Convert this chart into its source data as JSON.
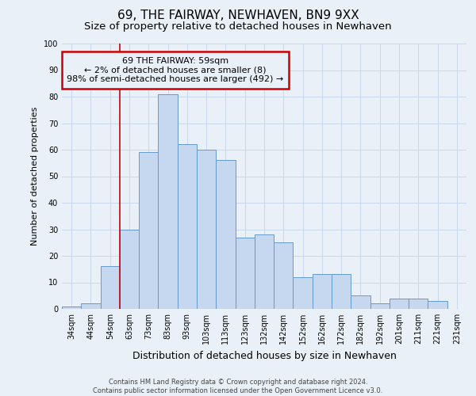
{
  "title": "69, THE FAIRWAY, NEWHAVEN, BN9 9XX",
  "subtitle": "Size of property relative to detached houses in Newhaven",
  "xlabel": "Distribution of detached houses by size in Newhaven",
  "ylabel": "Number of detached properties",
  "bar_labels": [
    "34sqm",
    "44sqm",
    "54sqm",
    "63sqm",
    "73sqm",
    "83sqm",
    "93sqm",
    "103sqm",
    "113sqm",
    "123sqm",
    "132sqm",
    "142sqm",
    "152sqm",
    "162sqm",
    "172sqm",
    "182sqm",
    "192sqm",
    "201sqm",
    "211sqm",
    "221sqm",
    "231sqm"
  ],
  "bar_values": [
    1,
    2,
    16,
    30,
    59,
    81,
    62,
    60,
    56,
    27,
    28,
    25,
    12,
    13,
    13,
    5,
    2,
    4,
    4,
    3,
    0
  ],
  "bar_color": "#c5d8f0",
  "bar_edge_color": "#6699cc",
  "annotation_title": "69 THE FAIRWAY: 59sqm",
  "annotation_line1": "← 2% of detached houses are smaller (8)",
  "annotation_line2": "98% of semi-detached houses are larger (492) →",
  "vline_x_index": 2.5,
  "ylim": [
    0,
    100
  ],
  "grid_color": "#c8d8ec",
  "footer_line1": "Contains HM Land Registry data © Crown copyright and database right 2024.",
  "footer_line2": "Contains public sector information licensed under the Open Government Licence v3.0.",
  "background_color": "#eaf0f8",
  "vline_color": "#cc0000",
  "annotation_box_color": "#cc0000",
  "title_fontsize": 11,
  "subtitle_fontsize": 9.5,
  "xlabel_fontsize": 9,
  "ylabel_fontsize": 8,
  "tick_fontsize": 7,
  "annotation_fontsize": 8,
  "footer_fontsize": 6
}
